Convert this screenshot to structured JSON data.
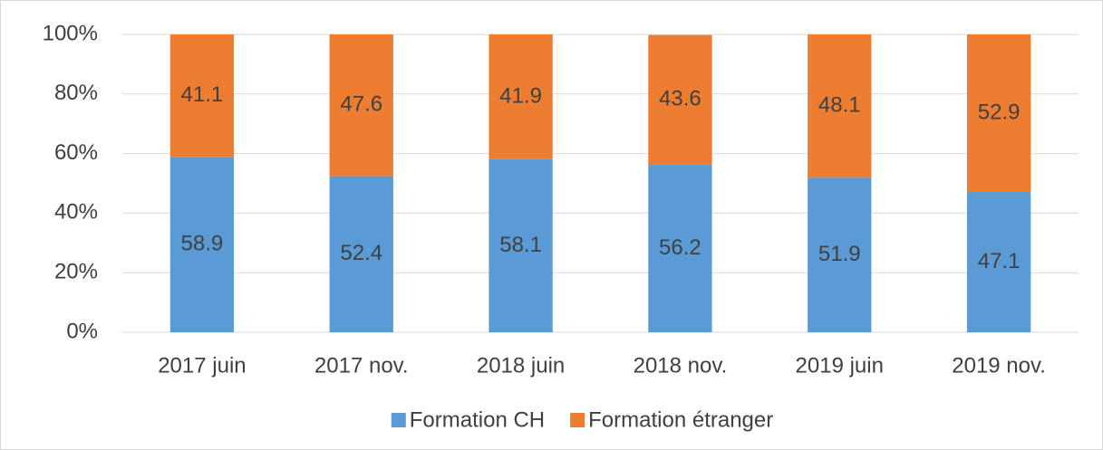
{
  "chart_data": {
    "type": "bar",
    "stacked": true,
    "categories": [
      "2017 juin",
      "2017 nov.",
      "2018 juin",
      "2018 nov.",
      "2019 juin",
      "2019 nov."
    ],
    "series": [
      {
        "name": "Formation CH",
        "color": "#5b9bd5",
        "values": [
          58.9,
          52.4,
          58.1,
          56.2,
          51.9,
          47.1
        ]
      },
      {
        "name": "Formation étranger",
        "color": "#ed7d31",
        "values": [
          41.1,
          47.6,
          41.9,
          43.6,
          48.1,
          52.9
        ]
      }
    ],
    "ylim": [
      0,
      100
    ],
    "yticks": [
      {
        "value": 0,
        "label": "0%"
      },
      {
        "value": 20,
        "label": "20%"
      },
      {
        "value": 40,
        "label": "40%"
      },
      {
        "value": 60,
        "label": "60%"
      },
      {
        "value": 80,
        "label": "80%"
      },
      {
        "value": 100,
        "label": "100%"
      }
    ],
    "grid": true,
    "legend": "bottom"
  }
}
